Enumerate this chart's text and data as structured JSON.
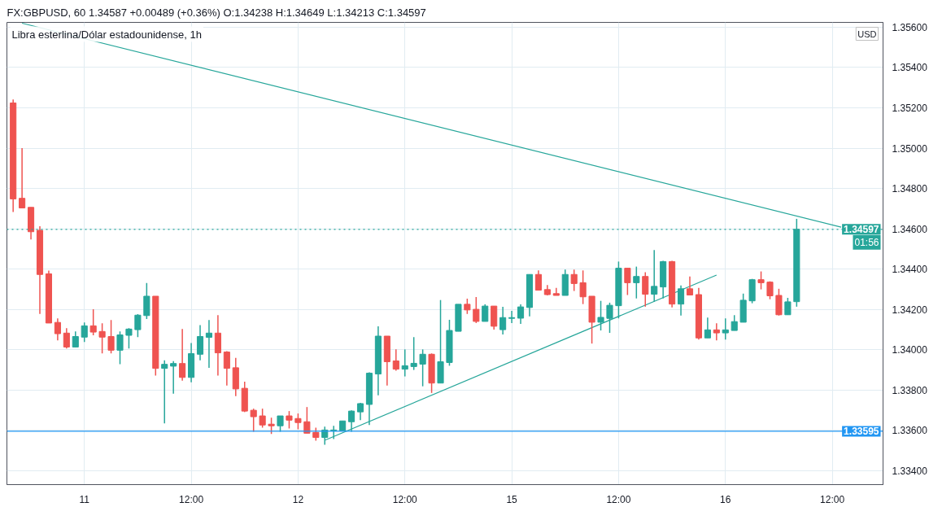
{
  "chart_data": {
    "type": "candlestick",
    "title": "Libra esterlina/Dólar estadounidense, 1h",
    "subtitle": "FX:GBPUSD, 60  1.34587  +0.00489 (+0.36%)  O:1.34238  H:1.34649  L:1.34213  C:1.34597",
    "ylabel": "USD",
    "categories": [
      null,
      null,
      null,
      null,
      null,
      null,
      null,
      null,
      "11",
      null,
      null,
      null,
      null,
      null,
      null,
      null,
      null,
      null,
      null,
      null,
      "12:00",
      null,
      null,
      null,
      null,
      null,
      null,
      null,
      null,
      null,
      null,
      null,
      "12",
      null,
      null,
      null,
      null,
      null,
      null,
      null,
      null,
      null,
      null,
      null,
      "12:00",
      null,
      null,
      null,
      null,
      null,
      null,
      null,
      null,
      null,
      null,
      null,
      "15",
      null,
      null,
      null,
      null,
      null,
      null,
      null,
      null,
      null,
      null,
      null,
      "12:00",
      null,
      null,
      null,
      null,
      null,
      null,
      null,
      null,
      null,
      null,
      null,
      "16",
      null,
      null,
      null,
      null,
      null,
      null,
      null,
      null,
      null,
      null,
      null,
      "12:00",
      null,
      null,
      null,
      null,
      null
    ],
    "ohlc": [
      [
        1.35224,
        1.35241,
        1.34683,
        1.34748
      ],
      [
        1.34751,
        1.35,
        1.34703,
        1.34703
      ],
      [
        1.34706,
        1.34706,
        1.34547,
        1.34585
      ],
      [
        1.34592,
        1.34612,
        1.34177,
        1.34373
      ],
      [
        1.34376,
        1.34392,
        1.34132,
        1.34132
      ],
      [
        1.34135,
        1.34155,
        1.34046,
        1.34079
      ],
      [
        1.34082,
        1.34106,
        1.34005,
        1.34013
      ],
      [
        1.34013,
        1.3409,
        1.34013,
        1.34065
      ],
      [
        1.34062,
        1.34135,
        1.34038,
        1.34118
      ],
      [
        1.34118,
        1.342,
        1.34071,
        1.34087
      ],
      [
        1.3409,
        1.34131,
        1.33981,
        1.34062
      ],
      [
        1.34065,
        1.34147,
        1.33981,
        1.33997
      ],
      [
        1.33997,
        1.3409,
        1.33928,
        1.34073
      ],
      [
        1.34071,
        1.34106,
        1.34005,
        1.34102
      ],
      [
        1.34099,
        1.34176,
        1.34062,
        1.34171
      ],
      [
        1.34169,
        1.34331,
        1.34152,
        1.34265
      ],
      [
        1.34265,
        1.34265,
        1.33871,
        1.33907
      ],
      [
        1.33907,
        1.33947,
        1.33634,
        1.33927
      ],
      [
        1.33918,
        1.33943,
        1.33781,
        1.33931
      ],
      [
        1.33931,
        1.34102,
        1.33846,
        1.33862
      ],
      [
        1.33862,
        1.34033,
        1.33838,
        1.3398
      ],
      [
        1.33977,
        1.34122,
        1.33947,
        1.34065
      ],
      [
        1.34061,
        1.34147,
        1.3391,
        1.34082
      ],
      [
        1.34082,
        1.34171,
        1.33871,
        1.33984
      ],
      [
        1.33988,
        1.33992,
        1.33822,
        1.33907
      ],
      [
        1.3391,
        1.33959,
        1.33769,
        1.33805
      ],
      [
        1.33808,
        1.33841,
        1.3369,
        1.33695
      ],
      [
        1.33699,
        1.33707,
        1.33593,
        1.33667
      ],
      [
        1.33671,
        1.33707,
        1.33613,
        1.33626
      ],
      [
        1.3363,
        1.33662,
        1.33581,
        1.33622
      ],
      [
        1.33622,
        1.33671,
        1.33593,
        1.33671
      ],
      [
        1.33671,
        1.33695,
        1.33609,
        1.3365
      ],
      [
        1.33658,
        1.33683,
        1.33605,
        1.33638
      ],
      [
        1.33642,
        1.33715,
        1.33585,
        1.33585
      ],
      [
        1.33589,
        1.33613,
        1.33548,
        1.33564
      ],
      [
        1.33564,
        1.33618,
        1.33528,
        1.33601
      ],
      [
        1.33597,
        1.33622,
        1.33556,
        1.33601
      ],
      [
        1.33597,
        1.33646,
        1.33597,
        1.33646
      ],
      [
        1.33642,
        1.33699,
        1.33593,
        1.33695
      ],
      [
        1.33691,
        1.33736,
        1.3365,
        1.33732
      ],
      [
        1.33728,
        1.33887,
        1.33626,
        1.33883
      ],
      [
        1.33879,
        1.34116,
        1.33773,
        1.34067
      ],
      [
        1.34067,
        1.34067,
        1.33822,
        1.3394
      ],
      [
        1.33944,
        1.34001,
        1.33895,
        1.33903
      ],
      [
        1.33903,
        1.34001,
        1.33867,
        1.3392
      ],
      [
        1.33916,
        1.34062,
        1.33899,
        1.33932
      ],
      [
        1.33928,
        1.34001,
        1.33818,
        1.33977
      ],
      [
        1.33977,
        1.33981,
        1.33785,
        1.33834
      ],
      [
        1.33834,
        1.34246,
        1.33834,
        1.3394
      ],
      [
        1.33936,
        1.34148,
        1.3392,
        1.34095
      ],
      [
        1.34091,
        1.34225,
        1.34091,
        1.34225
      ],
      [
        1.34225,
        1.34253,
        1.34177,
        1.34197
      ],
      [
        1.342,
        1.34261,
        1.34132,
        1.3414
      ],
      [
        1.3414,
        1.34225,
        1.3414,
        1.34216
      ],
      [
        1.34216,
        1.34216,
        1.34099,
        1.34116
      ],
      [
        1.34099,
        1.34212,
        1.34075,
        1.34159
      ],
      [
        1.34155,
        1.34192,
        1.34132,
        1.34159
      ],
      [
        1.34156,
        1.34225,
        1.34128,
        1.34212
      ],
      [
        1.34209,
        1.34373,
        1.34165,
        1.34373
      ],
      [
        1.34373,
        1.34393,
        1.34295,
        1.34295
      ],
      [
        1.34298,
        1.3432,
        1.34269,
        1.34273
      ],
      [
        1.34278,
        1.34306,
        1.34269,
        1.34269
      ],
      [
        1.34269,
        1.34397,
        1.34269,
        1.34373
      ],
      [
        1.34373,
        1.34397,
        1.34291,
        1.34328
      ],
      [
        1.34332,
        1.34393,
        1.34226,
        1.34262
      ],
      [
        1.34265,
        1.34265,
        1.3403,
        1.34136
      ],
      [
        1.34136,
        1.34242,
        1.34095,
        1.3416
      ],
      [
        1.34155,
        1.34233,
        1.34083,
        1.3422
      ],
      [
        1.34218,
        1.34437,
        1.34155,
        1.34404
      ],
      [
        1.34404,
        1.34404,
        1.34271,
        1.34332
      ],
      [
        1.34332,
        1.34412,
        1.34254,
        1.34363
      ],
      [
        1.34363,
        1.34384,
        1.34213,
        1.34275
      ],
      [
        1.34275,
        1.34494,
        1.34238,
        1.34314
      ],
      [
        1.34311,
        1.34441,
        1.34254,
        1.34437
      ],
      [
        1.34437,
        1.34441,
        1.34209,
        1.34226
      ],
      [
        1.34226,
        1.34318,
        1.34169,
        1.34302
      ],
      [
        1.34302,
        1.34363,
        1.34271,
        1.34271
      ],
      [
        1.34273,
        1.34306,
        1.3405,
        1.34058
      ],
      [
        1.34058,
        1.34159,
        1.34058,
        1.34098
      ],
      [
        1.34098,
        1.34131,
        1.34046,
        1.34083
      ],
      [
        1.34083,
        1.34155,
        1.3405,
        1.34098
      ],
      [
        1.34095,
        1.34171,
        1.34095,
        1.34139
      ],
      [
        1.34136,
        1.34278,
        1.34136,
        1.34245
      ],
      [
        1.34242,
        1.34351,
        1.3423,
        1.34347
      ],
      [
        1.34347,
        1.34388,
        1.34299,
        1.34332
      ],
      [
        1.34335,
        1.34339,
        1.3425,
        1.34267
      ],
      [
        1.34269,
        1.34302,
        1.34169,
        1.34173
      ],
      [
        1.34173,
        1.34257,
        1.34173,
        1.34237
      ],
      [
        1.34238,
        1.34649,
        1.34213,
        1.34597
      ],
      null,
      null,
      null,
      null,
      null,
      null,
      null,
      null,
      null
    ],
    "colors": [
      "#ef5350",
      "#ef5350",
      "#ef5350",
      "#ef5350",
      "#ef5350",
      "#ef5350",
      "#ef5350",
      "#26a69a",
      "#26a69a",
      "#ef5350",
      "#ef5350",
      "#ef5350",
      "#26a69a",
      "#26a69a",
      "#26a69a",
      "#26a69a",
      "#ef5350",
      "#26a69a",
      "#26a69a",
      "#ef5350",
      "#26a69a",
      "#26a69a",
      "#26a69a",
      "#ef5350",
      "#ef5350",
      "#ef5350",
      "#ef5350",
      "#ef5350",
      "#ef5350",
      "#ef5350",
      "#26a69a",
      "#ef5350",
      "#ef5350",
      "#ef5350",
      "#ef5350",
      "#26a69a",
      "#26a69a",
      "#26a69a",
      "#26a69a",
      "#26a69a",
      "#26a69a",
      "#26a69a",
      "#ef5350",
      "#ef5350",
      "#26a69a",
      "#26a69a",
      "#26a69a",
      "#ef5350",
      "#26a69a",
      "#26a69a",
      "#26a69a",
      "#ef5350",
      "#ef5350",
      "#26a69a",
      "#ef5350",
      "#26a69a",
      "#26a69a",
      "#26a69a",
      "#26a69a",
      "#ef5350",
      "#ef5350",
      "#ef5350",
      "#26a69a",
      "#ef5350",
      "#ef5350",
      "#ef5350",
      "#26a69a",
      "#26a69a",
      "#26a69a",
      "#ef5350",
      "#26a69a",
      "#ef5350",
      "#26a69a",
      "#26a69a",
      "#ef5350",
      "#26a69a",
      "#ef5350",
      "#ef5350",
      "#26a69a",
      "#ef5350",
      "#26a69a",
      "#26a69a",
      "#26a69a",
      "#26a69a",
      "#ef5350",
      "#ef5350",
      "#ef5350",
      "#26a69a",
      "#26a69a",
      null,
      null,
      null,
      null,
      null,
      null,
      null,
      null,
      null
    ],
    "series": [
      {
        "type": "line",
        "color": "#26a69a",
        "values": [
          null,
          1.3562,
          null,
          null,
          null,
          null,
          null,
          null,
          null,
          null,
          null,
          null,
          null,
          null,
          null,
          null,
          null,
          null,
          null,
          null,
          null,
          null,
          null,
          null,
          null,
          null,
          null,
          null,
          null,
          null,
          null,
          null,
          null,
          null,
          null,
          null,
          null,
          null,
          null,
          null,
          null,
          null,
          null,
          null,
          null,
          null,
          null,
          null,
          null,
          null,
          null,
          null,
          null,
          null,
          null,
          null,
          null,
          null,
          null,
          null,
          null,
          null,
          null,
          null,
          null,
          null,
          null,
          null,
          null,
          null,
          null,
          null,
          null,
          null,
          null,
          null,
          null,
          null,
          null,
          null,
          null,
          null,
          null,
          null,
          null,
          null,
          null,
          null,
          null,
          null,
          null,
          null,
          null,
          1.34608,
          null,
          null,
          null,
          null
        ]
      },
      {
        "type": "line",
        "color": "#26a69a",
        "values": [
          null,
          null,
          null,
          null,
          null,
          null,
          null,
          null,
          null,
          null,
          null,
          null,
          null,
          null,
          null,
          null,
          null,
          null,
          null,
          null,
          null,
          null,
          null,
          null,
          null,
          null,
          null,
          null,
          null,
          null,
          null,
          null,
          null,
          null,
          null,
          1.3355,
          null,
          null,
          null,
          null,
          null,
          null,
          null,
          null,
          null,
          null,
          null,
          null,
          null,
          null,
          null,
          null,
          null,
          null,
          null,
          null,
          null,
          null,
          null,
          null,
          null,
          null,
          null,
          null,
          null,
          null,
          null,
          null,
          null,
          null,
          null,
          null,
          null,
          null,
          null,
          null,
          null,
          null,
          null,
          1.3437,
          null,
          null,
          null,
          null,
          null,
          null,
          null,
          null,
          null,
          null,
          null,
          null,
          null,
          null,
          null,
          null,
          null,
          null
        ]
      }
    ],
    "ref_lines": [
      {
        "axis": "y",
        "value": 1.34597,
        "label": "1.34597",
        "color": "#26a69a",
        "line_style": "dotted"
      },
      {
        "axis": "y",
        "value": 1.33595,
        "label": "1.33595",
        "color": "#2196f3",
        "line_style": "solid"
      }
    ],
    "annotations": [
      "01:56"
    ],
    "ylim": [
      1.3333,
      1.35624
    ],
    "yticks": [
      {
        "value": 1.334,
        "label": "1.33400"
      },
      {
        "value": 1.336,
        "label": "1.33600"
      },
      {
        "value": 1.338,
        "label": "1.33800"
      },
      {
        "value": 1.34,
        "label": "1.34000"
      },
      {
        "value": 1.342,
        "label": "1.34200"
      },
      {
        "value": 1.344,
        "label": "1.34400"
      },
      {
        "value": 1.346,
        "label": "1.34600"
      },
      {
        "value": 1.348,
        "label": "1.34800"
      },
      {
        "value": 1.35,
        "label": "1.35000"
      },
      {
        "value": 1.352,
        "label": "1.35200"
      },
      {
        "value": 1.354,
        "label": "1.35400"
      },
      {
        "value": 1.356,
        "label": "1.35600"
      }
    ],
    "grid": true
  }
}
